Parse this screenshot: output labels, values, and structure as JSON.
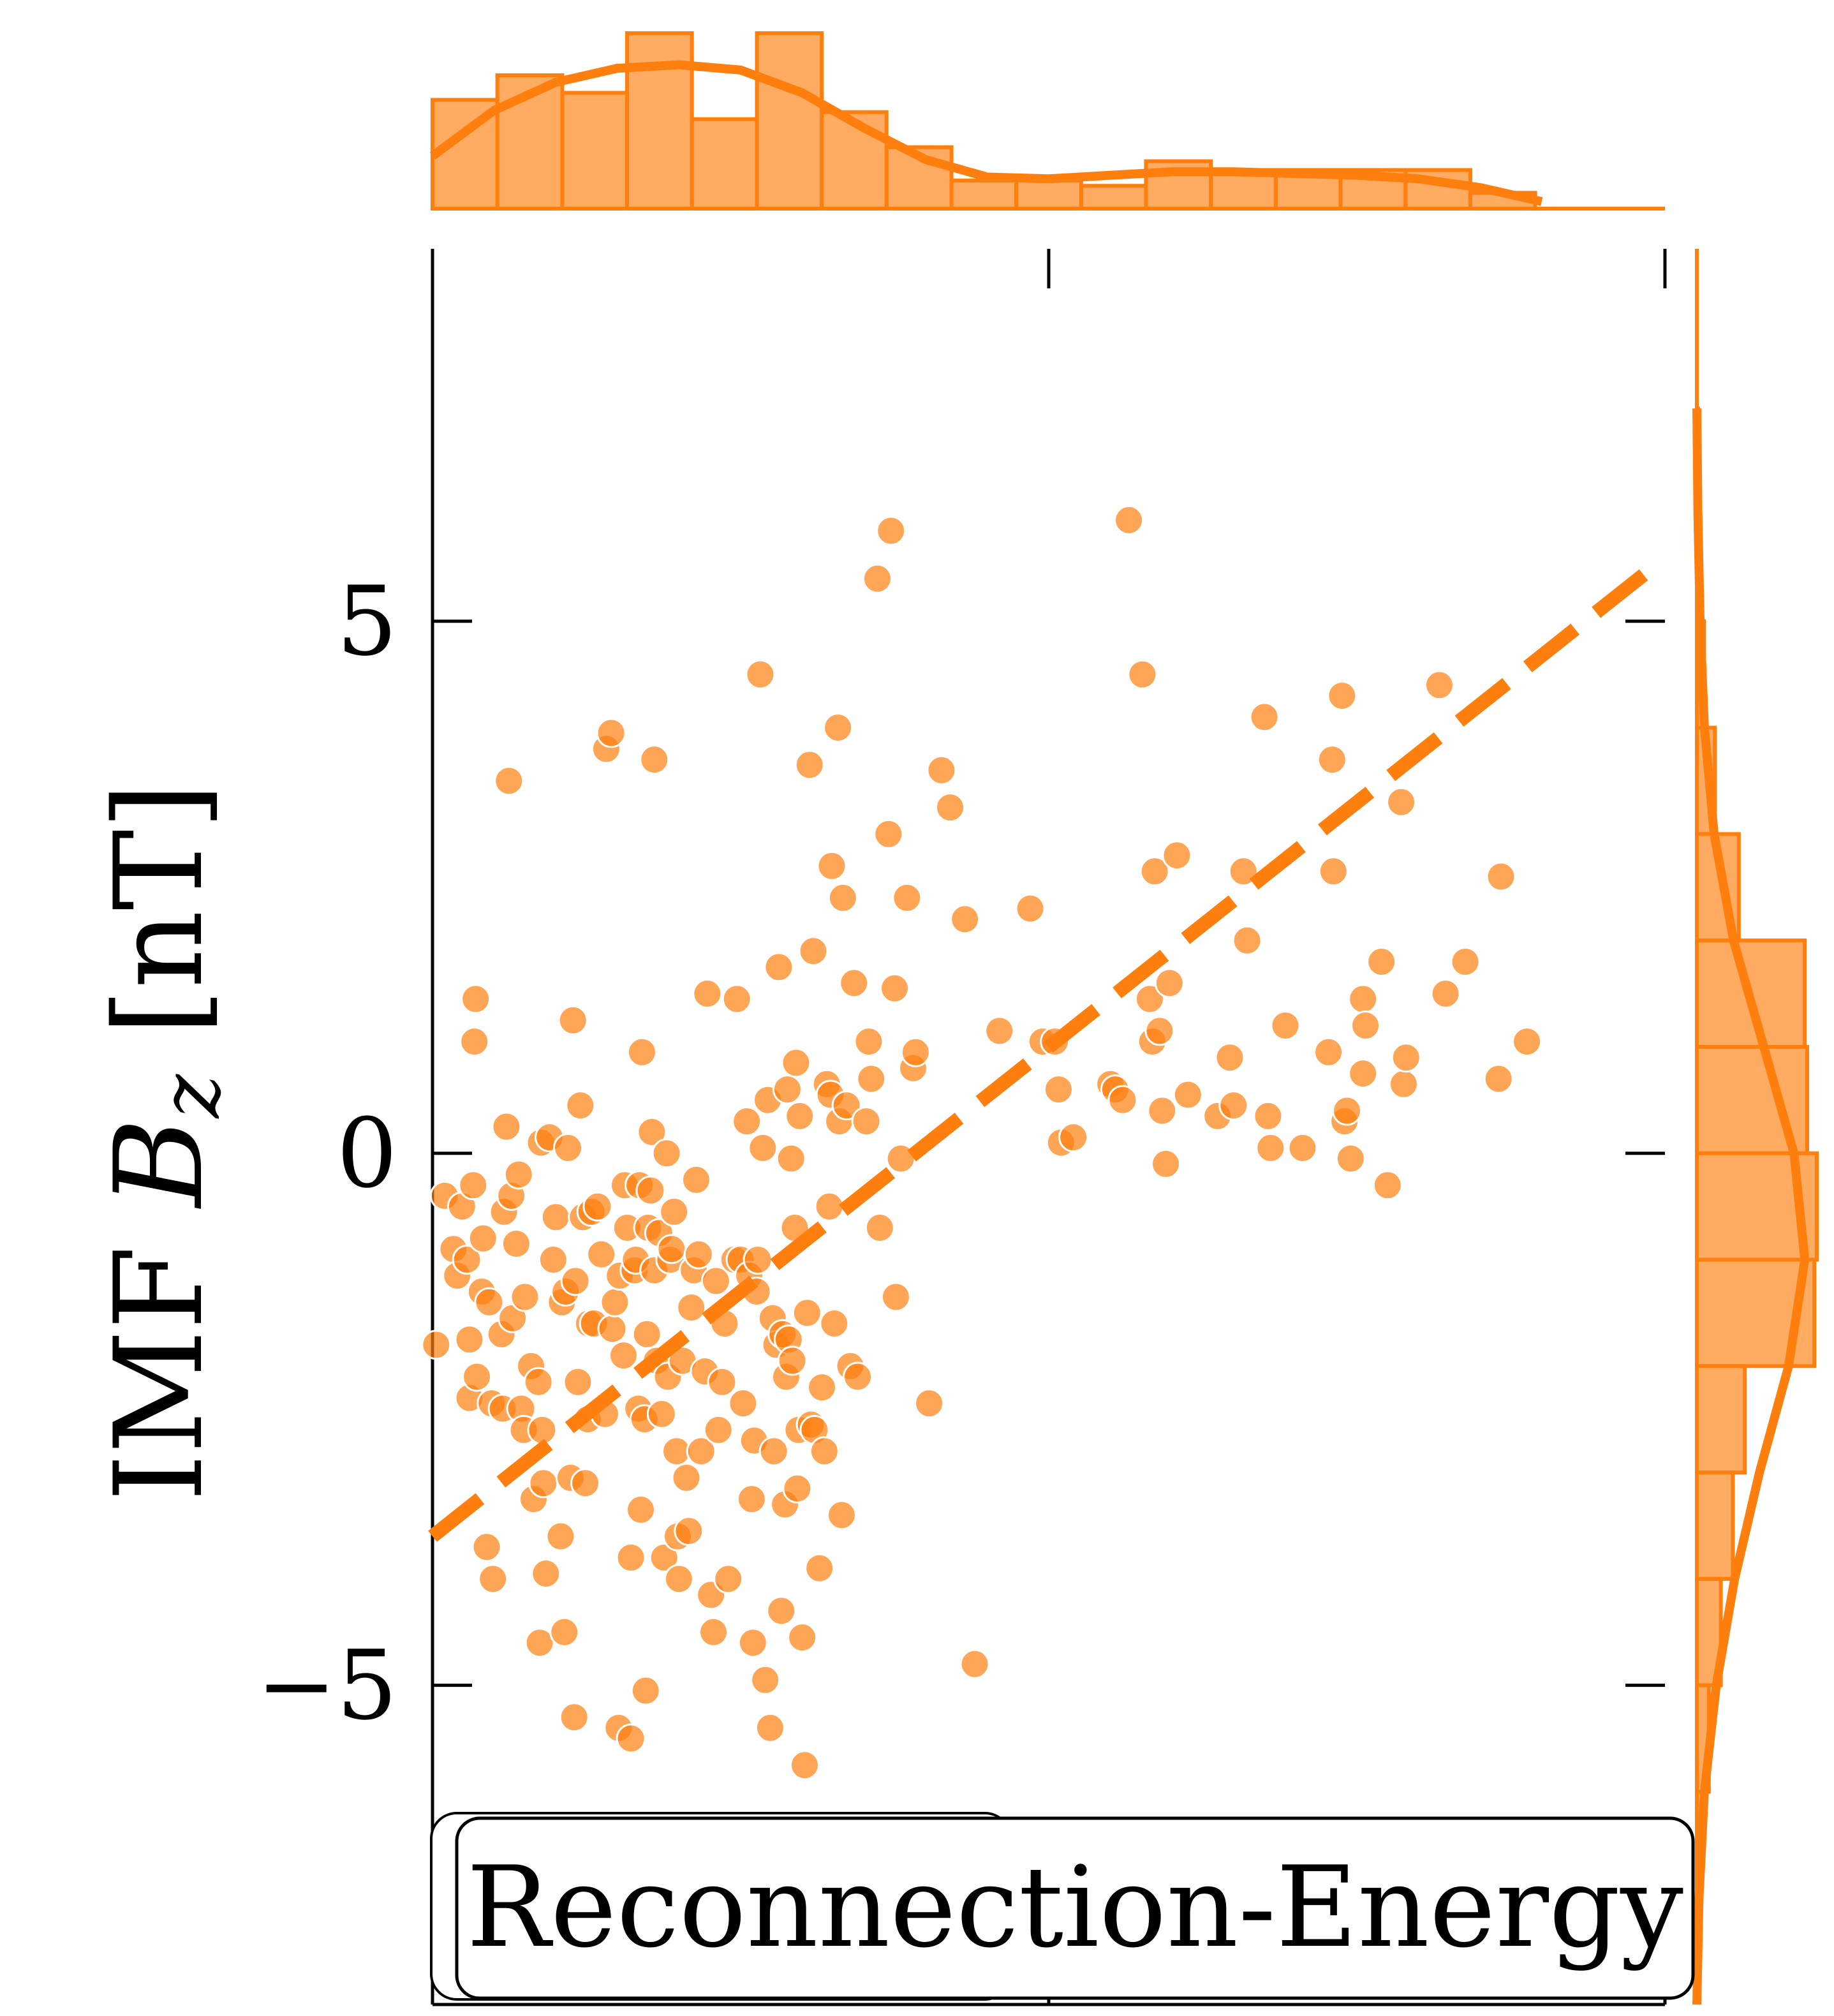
{
  "chart_data": {
    "type": "scatter",
    "title": "",
    "xlabel": "",
    "ylabel": "IMF B_z [nT]",
    "ylabel_parts": {
      "prefix": "IMF ",
      "symbol": "B",
      "subscript": "z",
      "unit": " [nT]"
    },
    "xlim": [
      0,
      1
    ],
    "ylim": [
      -8,
      8.5
    ],
    "yticks": [
      -5,
      0,
      5
    ],
    "ytick_labels": [
      "−5",
      "0",
      "5"
    ],
    "xticks": [
      0,
      0.5,
      1
    ],
    "color": "#ff7f0e",
    "legend": {
      "label": "Reconnection-Energy",
      "placement": "lower-center"
    },
    "series": [
      {
        "label": "Reconnection-Energy",
        "points": [
          [
            0.003,
            -1.8
          ],
          [
            0.01,
            -0.4
          ],
          [
            0.017,
            -0.9
          ],
          [
            0.02,
            -1.15
          ],
          [
            0.024,
            -0.5
          ],
          [
            0.028,
            -1.0
          ],
          [
            0.03,
            -1.75
          ],
          [
            0.033,
            -0.3
          ],
          [
            0.034,
            1.05
          ],
          [
            0.035,
            1.45
          ],
          [
            0.03,
            -2.3
          ],
          [
            0.036,
            -2.1
          ],
          [
            0.04,
            -1.3
          ],
          [
            0.041,
            -0.8
          ],
          [
            0.044,
            -3.7
          ],
          [
            0.046,
            -1.4
          ],
          [
            0.048,
            -2.35
          ],
          [
            0.049,
            -4.0
          ],
          [
            0.056,
            -1.7
          ],
          [
            0.057,
            -2.4
          ],
          [
            0.058,
            -0.55
          ],
          [
            0.06,
            0.25
          ],
          [
            0.062,
            3.5
          ],
          [
            0.064,
            -0.4
          ],
          [
            0.065,
            -1.55
          ],
          [
            0.068,
            -0.85
          ],
          [
            0.07,
            -0.2
          ],
          [
            0.072,
            -2.4
          ],
          [
            0.074,
            -2.6
          ],
          [
            0.075,
            -1.35
          ],
          [
            0.08,
            -2.0
          ],
          [
            0.082,
            -3.25
          ],
          [
            0.086,
            -2.15
          ],
          [
            0.087,
            -4.6
          ],
          [
            0.088,
            0.1
          ],
          [
            0.089,
            -2.6
          ],
          [
            0.09,
            -3.1
          ],
          [
            0.092,
            -3.95
          ],
          [
            0.095,
            0.15
          ],
          [
            0.098,
            -1.0
          ],
          [
            0.1,
            -0.6
          ],
          [
            0.104,
            -3.6
          ],
          [
            0.105,
            -1.4
          ],
          [
            0.107,
            -4.5
          ],
          [
            0.108,
            -1.3
          ],
          [
            0.11,
            0.05
          ],
          [
            0.112,
            -3.05
          ],
          [
            0.114,
            1.25
          ],
          [
            0.115,
            -5.3
          ],
          [
            0.116,
            -1.2
          ],
          [
            0.118,
            -2.15
          ],
          [
            0.12,
            0.45
          ],
          [
            0.122,
            -0.6
          ],
          [
            0.124,
            -3.1
          ],
          [
            0.126,
            -2.5
          ],
          [
            0.127,
            -1.6
          ],
          [
            0.129,
            -0.55
          ],
          [
            0.131,
            -1.6
          ],
          [
            0.134,
            -0.5
          ],
          [
            0.137,
            -0.95
          ],
          [
            0.14,
            -2.45
          ],
          [
            0.141,
            3.8
          ],
          [
            0.145,
            3.95
          ],
          [
            0.146,
            -1.65
          ],
          [
            0.148,
            -1.4
          ],
          [
            0.151,
            -5.4
          ],
          [
            0.152,
            -1.15
          ],
          [
            0.155,
            -1.9
          ],
          [
            0.156,
            -0.3
          ],
          [
            0.158,
            -0.7
          ],
          [
            0.161,
            -5.5
          ],
          [
            0.161,
            -3.8
          ],
          [
            0.164,
            -1.1
          ],
          [
            0.165,
            -1.0
          ],
          [
            0.167,
            -2.4
          ],
          [
            0.168,
            -0.3
          ],
          [
            0.169,
            -3.35
          ],
          [
            0.17,
            0.95
          ],
          [
            0.172,
            -2.5
          ],
          [
            0.173,
            -5.05
          ],
          [
            0.174,
            -1.7
          ],
          [
            0.175,
            -0.7
          ],
          [
            0.177,
            -0.35
          ],
          [
            0.178,
            0.2
          ],
          [
            0.18,
            -1.1
          ],
          [
            0.18,
            3.7
          ],
          [
            0.182,
            -1.95
          ],
          [
            0.184,
            -0.75
          ],
          [
            0.186,
            -2.45
          ],
          [
            0.188,
            -3.8
          ],
          [
            0.19,
            0.0
          ],
          [
            0.191,
            -2.1
          ],
          [
            0.193,
            -1.0
          ],
          [
            0.194,
            -0.9
          ],
          [
            0.196,
            -0.55
          ],
          [
            0.198,
            -2.8
          ],
          [
            0.199,
            -3.6
          ],
          [
            0.2,
            -4.0
          ],
          [
            0.203,
            -1.95
          ],
          [
            0.206,
            -3.05
          ],
          [
            0.208,
            -3.55
          ],
          [
            0.21,
            -1.45
          ],
          [
            0.212,
            -1.1
          ],
          [
            0.214,
            -0.25
          ],
          [
            0.216,
            -0.95
          ],
          [
            0.218,
            -2.8
          ],
          [
            0.221,
            -2.05
          ],
          [
            0.223,
            1.5
          ],
          [
            0.226,
            -4.15
          ],
          [
            0.228,
            -4.5
          ],
          [
            0.23,
            -1.2
          ],
          [
            0.232,
            -2.6
          ],
          [
            0.235,
            -2.15
          ],
          [
            0.237,
            -1.6
          ],
          [
            0.24,
            -4.0
          ],
          [
            0.245,
            -1.0
          ],
          [
            0.247,
            1.45
          ],
          [
            0.25,
            -1.0
          ],
          [
            0.252,
            -2.35
          ],
          [
            0.255,
            0.3
          ],
          [
            0.257,
            -1.15
          ],
          [
            0.259,
            -3.25
          ],
          [
            0.26,
            -4.6
          ],
          [
            0.261,
            -2.7
          ],
          [
            0.263,
            -1.3
          ],
          [
            0.264,
            -1.0
          ],
          [
            0.266,
            4.5
          ],
          [
            0.268,
            0.05
          ],
          [
            0.27,
            -4.95
          ],
          [
            0.272,
            0.5
          ],
          [
            0.274,
            -5.4
          ],
          [
            0.276,
            -1.55
          ],
          [
            0.277,
            -2.8
          ],
          [
            0.279,
            -1.8
          ],
          [
            0.281,
            1.75
          ],
          [
            0.283,
            -4.3
          ],
          [
            0.284,
            -1.7
          ],
          [
            0.286,
            -3.3
          ],
          [
            0.287,
            -2.1
          ],
          [
            0.288,
            0.6
          ],
          [
            0.289,
            -1.75
          ],
          [
            0.291,
            -0.05
          ],
          [
            0.292,
            -1.95
          ],
          [
            0.294,
            -0.7
          ],
          [
            0.295,
            0.85
          ],
          [
            0.296,
            -3.15
          ],
          [
            0.297,
            -2.6
          ],
          [
            0.298,
            0.35
          ],
          [
            0.3,
            -4.55
          ],
          [
            0.302,
            -5.75
          ],
          [
            0.304,
            -1.5
          ],
          [
            0.306,
            3.65
          ],
          [
            0.307,
            -2.55
          ],
          [
            0.309,
            1.9
          ],
          [
            0.31,
            -2.6
          ],
          [
            0.314,
            -3.9
          ],
          [
            0.316,
            -2.2
          ],
          [
            0.318,
            -2.8
          ],
          [
            0.32,
            0.65
          ],
          [
            0.322,
            -0.5
          ],
          [
            0.323,
            0.55
          ],
          [
            0.324,
            2.7
          ],
          [
            0.326,
            -1.6
          ],
          [
            0.329,
            4.0
          ],
          [
            0.33,
            0.3
          ],
          [
            0.332,
            -3.4
          ],
          [
            0.333,
            2.4
          ],
          [
            0.336,
            0.45
          ],
          [
            0.339,
            -2.0
          ],
          [
            0.342,
            1.6
          ],
          [
            0.345,
            -2.1
          ],
          [
            0.352,
            0.3
          ],
          [
            0.354,
            1.05
          ],
          [
            0.356,
            0.7
          ],
          [
            0.361,
            5.4
          ],
          [
            0.363,
            -0.7
          ],
          [
            0.37,
            3.0
          ],
          [
            0.372,
            5.85
          ],
          [
            0.375,
            1.55
          ],
          [
            0.376,
            -1.35
          ],
          [
            0.38,
            -0.05
          ],
          [
            0.385,
            2.4
          ],
          [
            0.39,
            0.8
          ],
          [
            0.392,
            0.95
          ],
          [
            0.403,
            -2.35
          ],
          [
            0.413,
            3.6
          ],
          [
            0.42,
            3.25
          ],
          [
            0.432,
            2.2
          ],
          [
            0.44,
            -4.8
          ],
          [
            0.46,
            1.15
          ],
          [
            0.485,
            2.3
          ],
          [
            0.495,
            1.05
          ],
          [
            0.505,
            1.05
          ],
          [
            0.508,
            0.6
          ],
          [
            0.51,
            0.1
          ],
          [
            0.52,
            0.15
          ],
          [
            0.55,
            0.65
          ],
          [
            0.554,
            0.6
          ],
          [
            0.56,
            0.5
          ],
          [
            0.565,
            5.95
          ],
          [
            0.576,
            4.5
          ],
          [
            0.582,
            1.45
          ],
          [
            0.584,
            1.05
          ],
          [
            0.586,
            2.65
          ],
          [
            0.59,
            1.15
          ],
          [
            0.592,
            0.4
          ],
          [
            0.595,
            -0.1
          ],
          [
            0.598,
            1.6
          ],
          [
            0.604,
            2.8
          ],
          [
            0.613,
            0.55
          ],
          [
            0.637,
            0.35
          ],
          [
            0.647,
            0.9
          ],
          [
            0.65,
            0.45
          ],
          [
            0.658,
            2.65
          ],
          [
            0.661,
            2.0
          ],
          [
            0.675,
            4.1
          ],
          [
            0.678,
            0.35
          ],
          [
            0.68,
            0.05
          ],
          [
            0.692,
            1.2
          ],
          [
            0.706,
            0.05
          ],
          [
            0.727,
            0.95
          ],
          [
            0.73,
            3.7
          ],
          [
            0.731,
            2.65
          ],
          [
            0.738,
            4.3
          ],
          [
            0.74,
            0.3
          ],
          [
            0.742,
            0.4
          ],
          [
            0.745,
            -0.05
          ],
          [
            0.755,
            0.75
          ],
          [
            0.755,
            1.45
          ],
          [
            0.757,
            1.2
          ],
          [
            0.77,
            1.8
          ],
          [
            0.775,
            -0.3
          ],
          [
            0.786,
            3.3
          ],
          [
            0.788,
            0.65
          ],
          [
            0.79,
            0.9
          ],
          [
            0.817,
            4.4
          ],
          [
            0.822,
            1.5
          ],
          [
            0.838,
            1.8
          ],
          [
            0.865,
            0.7
          ],
          [
            0.867,
            2.6
          ],
          [
            0.888,
            1.05
          ]
        ]
      }
    ],
    "trend_line": {
      "style": "dashed",
      "x": [
        0.0,
        0.995
      ],
      "y": [
        -3.6,
        5.55
      ]
    },
    "top_marginal": {
      "type": "histogram+kde",
      "bin_edges": [
        0.0,
        0.0526,
        0.1053,
        0.1579,
        0.2105,
        0.2632,
        0.3158,
        0.3684,
        0.4211,
        0.4737,
        0.5263,
        0.5789,
        0.6316,
        0.6842,
        0.7368,
        0.7895,
        0.8421,
        0.8947,
        0.9474,
        1.0
      ],
      "densities": [
        0.62,
        0.76,
        0.66,
        1.0,
        0.51,
        1.0,
        0.55,
        0.35,
        0.16,
        0.16,
        0.13,
        0.27,
        0.22,
        0.22,
        0.22,
        0.22,
        0.09,
        0.0,
        0.0
      ],
      "kde_x": [
        0.0,
        0.05,
        0.1,
        0.15,
        0.2,
        0.25,
        0.3,
        0.35,
        0.4,
        0.45,
        0.5,
        0.55,
        0.6,
        0.65,
        0.7,
        0.75,
        0.8,
        0.85,
        0.9
      ],
      "kde_y": [
        0.3,
        0.56,
        0.72,
        0.8,
        0.82,
        0.79,
        0.66,
        0.46,
        0.28,
        0.18,
        0.17,
        0.19,
        0.21,
        0.21,
        0.2,
        0.19,
        0.17,
        0.12,
        0.04
      ]
    },
    "right_marginal": {
      "type": "histogram+kde",
      "bin_edges": [
        -8.0,
        -7.0,
        -6.0,
        -5.0,
        -4.0,
        -3.0,
        -2.0,
        -1.0,
        0.0,
        1.0,
        2.0,
        3.0,
        4.0,
        5.0,
        6.0,
        7.0,
        8.0
      ],
      "densities": [
        0.0,
        0.04,
        0.1,
        0.2,
        0.3,
        0.4,
        0.98,
        1.0,
        0.92,
        0.9,
        0.35,
        0.15,
        0.06,
        0.03,
        0.01,
        0.0
      ],
      "kde_y": [
        -8.0,
        -7.0,
        -6.0,
        -5.0,
        -4.0,
        -3.0,
        -2.0,
        -1.0,
        0.0,
        1.0,
        2.0,
        3.0,
        4.0,
        5.0,
        6.0,
        7.0
      ],
      "kde_x": [
        0.0,
        0.02,
        0.07,
        0.18,
        0.35,
        0.58,
        0.85,
        1.0,
        0.9,
        0.62,
        0.34,
        0.16,
        0.07,
        0.03,
        0.01,
        0.0
      ]
    }
  }
}
